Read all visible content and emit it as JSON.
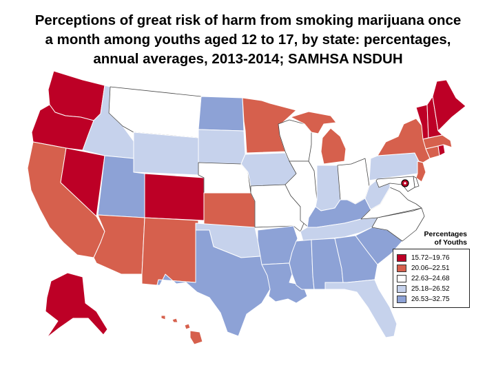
{
  "title_lines": [
    "Perceptions of great risk of harm from smoking marijuana once",
    "a month among youths aged 12 to 17, by state: percentages,",
    "annual averages, 2013-2014;  SAMHSA  NSDUH"
  ],
  "legend": {
    "title_lines": [
      "Percentages",
      "of Youths"
    ],
    "classes": [
      {
        "label": "15.72–19.76",
        "color": "#bd0026"
      },
      {
        "label": "20.06–22.51",
        "color": "#d6604d"
      },
      {
        "label": "22.63–24.68",
        "color": "#ffffff"
      },
      {
        "label": "25.18–26.52",
        "color": "#c6d2ec"
      },
      {
        "label": "26.53–32.75",
        "color": "#8da2d6"
      }
    ]
  },
  "states": {
    "WA": 0,
    "OR": 0,
    "NV": 0,
    "CO": 0,
    "AK": 0,
    "VT": 0,
    "NH": 0,
    "ME": 0,
    "RI": 0,
    "DC": 0,
    "CA": 1,
    "AZ": 1,
    "NM": 1,
    "KS": 1,
    "MN": 1,
    "MI": 1,
    "NY": 1,
    "MA": 1,
    "CT": 1,
    "NJ": 1,
    "HI": 1,
    "MT": 2,
    "NE": 2,
    "WI": 2,
    "IL": 2,
    "MO": 2,
    "OH": 2,
    "NC": 2,
    "DE": 2,
    "MD": 2,
    "VA": 2,
    "ID": 3,
    "WY": 3,
    "SD": 3,
    "IA": 3,
    "IN": 3,
    "PA": 3,
    "WV": 3,
    "OK": 3,
    "TN": 3,
    "FL": 3,
    "ND": 4,
    "UT": 4,
    "TX": 4,
    "AR": 4,
    "LA": 4,
    "MS": 4,
    "AL": 4,
    "GA": 4,
    "SC": 4,
    "KY": 4
  }
}
